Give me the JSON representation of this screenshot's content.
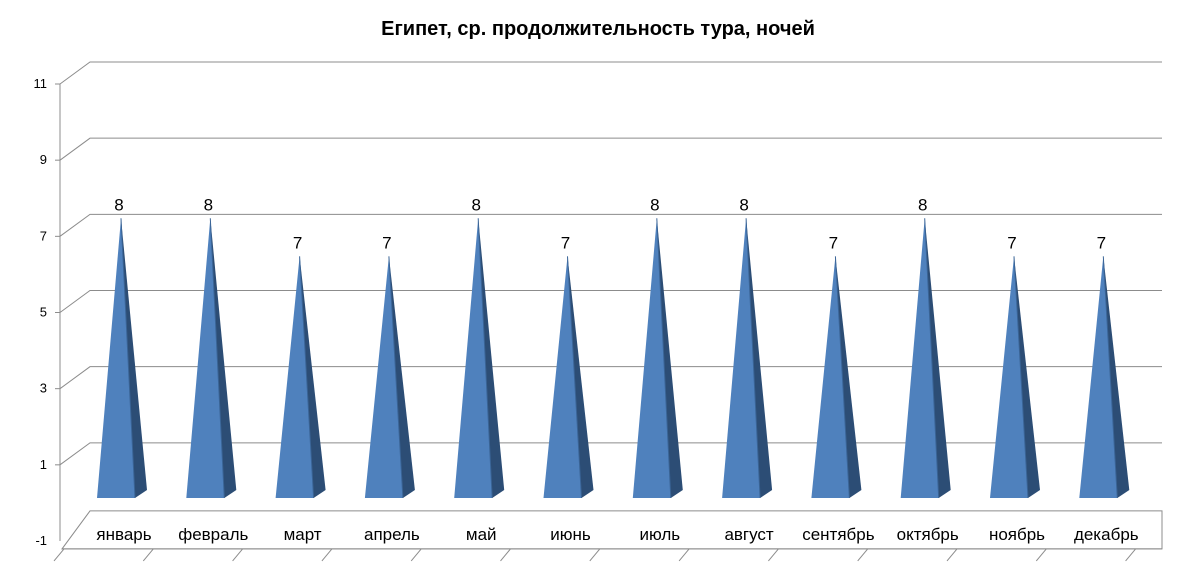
{
  "chart_data": {
    "type": "bar",
    "style": "3d-pyramid",
    "title": "Египет, ср. продолжительность тура, ночей",
    "xlabel": "",
    "ylabel": "",
    "categories": [
      "январь",
      "февраль",
      "март",
      "апрель",
      "май",
      "июнь",
      "июль",
      "август",
      "сентябрь",
      "октябрь",
      "ноябрь",
      "декабрь"
    ],
    "values": [
      8,
      8,
      7,
      7,
      8,
      7,
      8,
      8,
      7,
      8,
      7,
      7
    ],
    "ylim": [
      -1,
      11
    ],
    "yticks": [
      -1,
      1,
      3,
      5,
      7,
      9,
      11
    ],
    "grid": true,
    "legend": "none",
    "colors": {
      "front": "#4f81bd",
      "side": "#2c4d75",
      "edge": "#3a6496",
      "grid": "#8c8c8c",
      "axis": "#8c8c8c"
    }
  }
}
